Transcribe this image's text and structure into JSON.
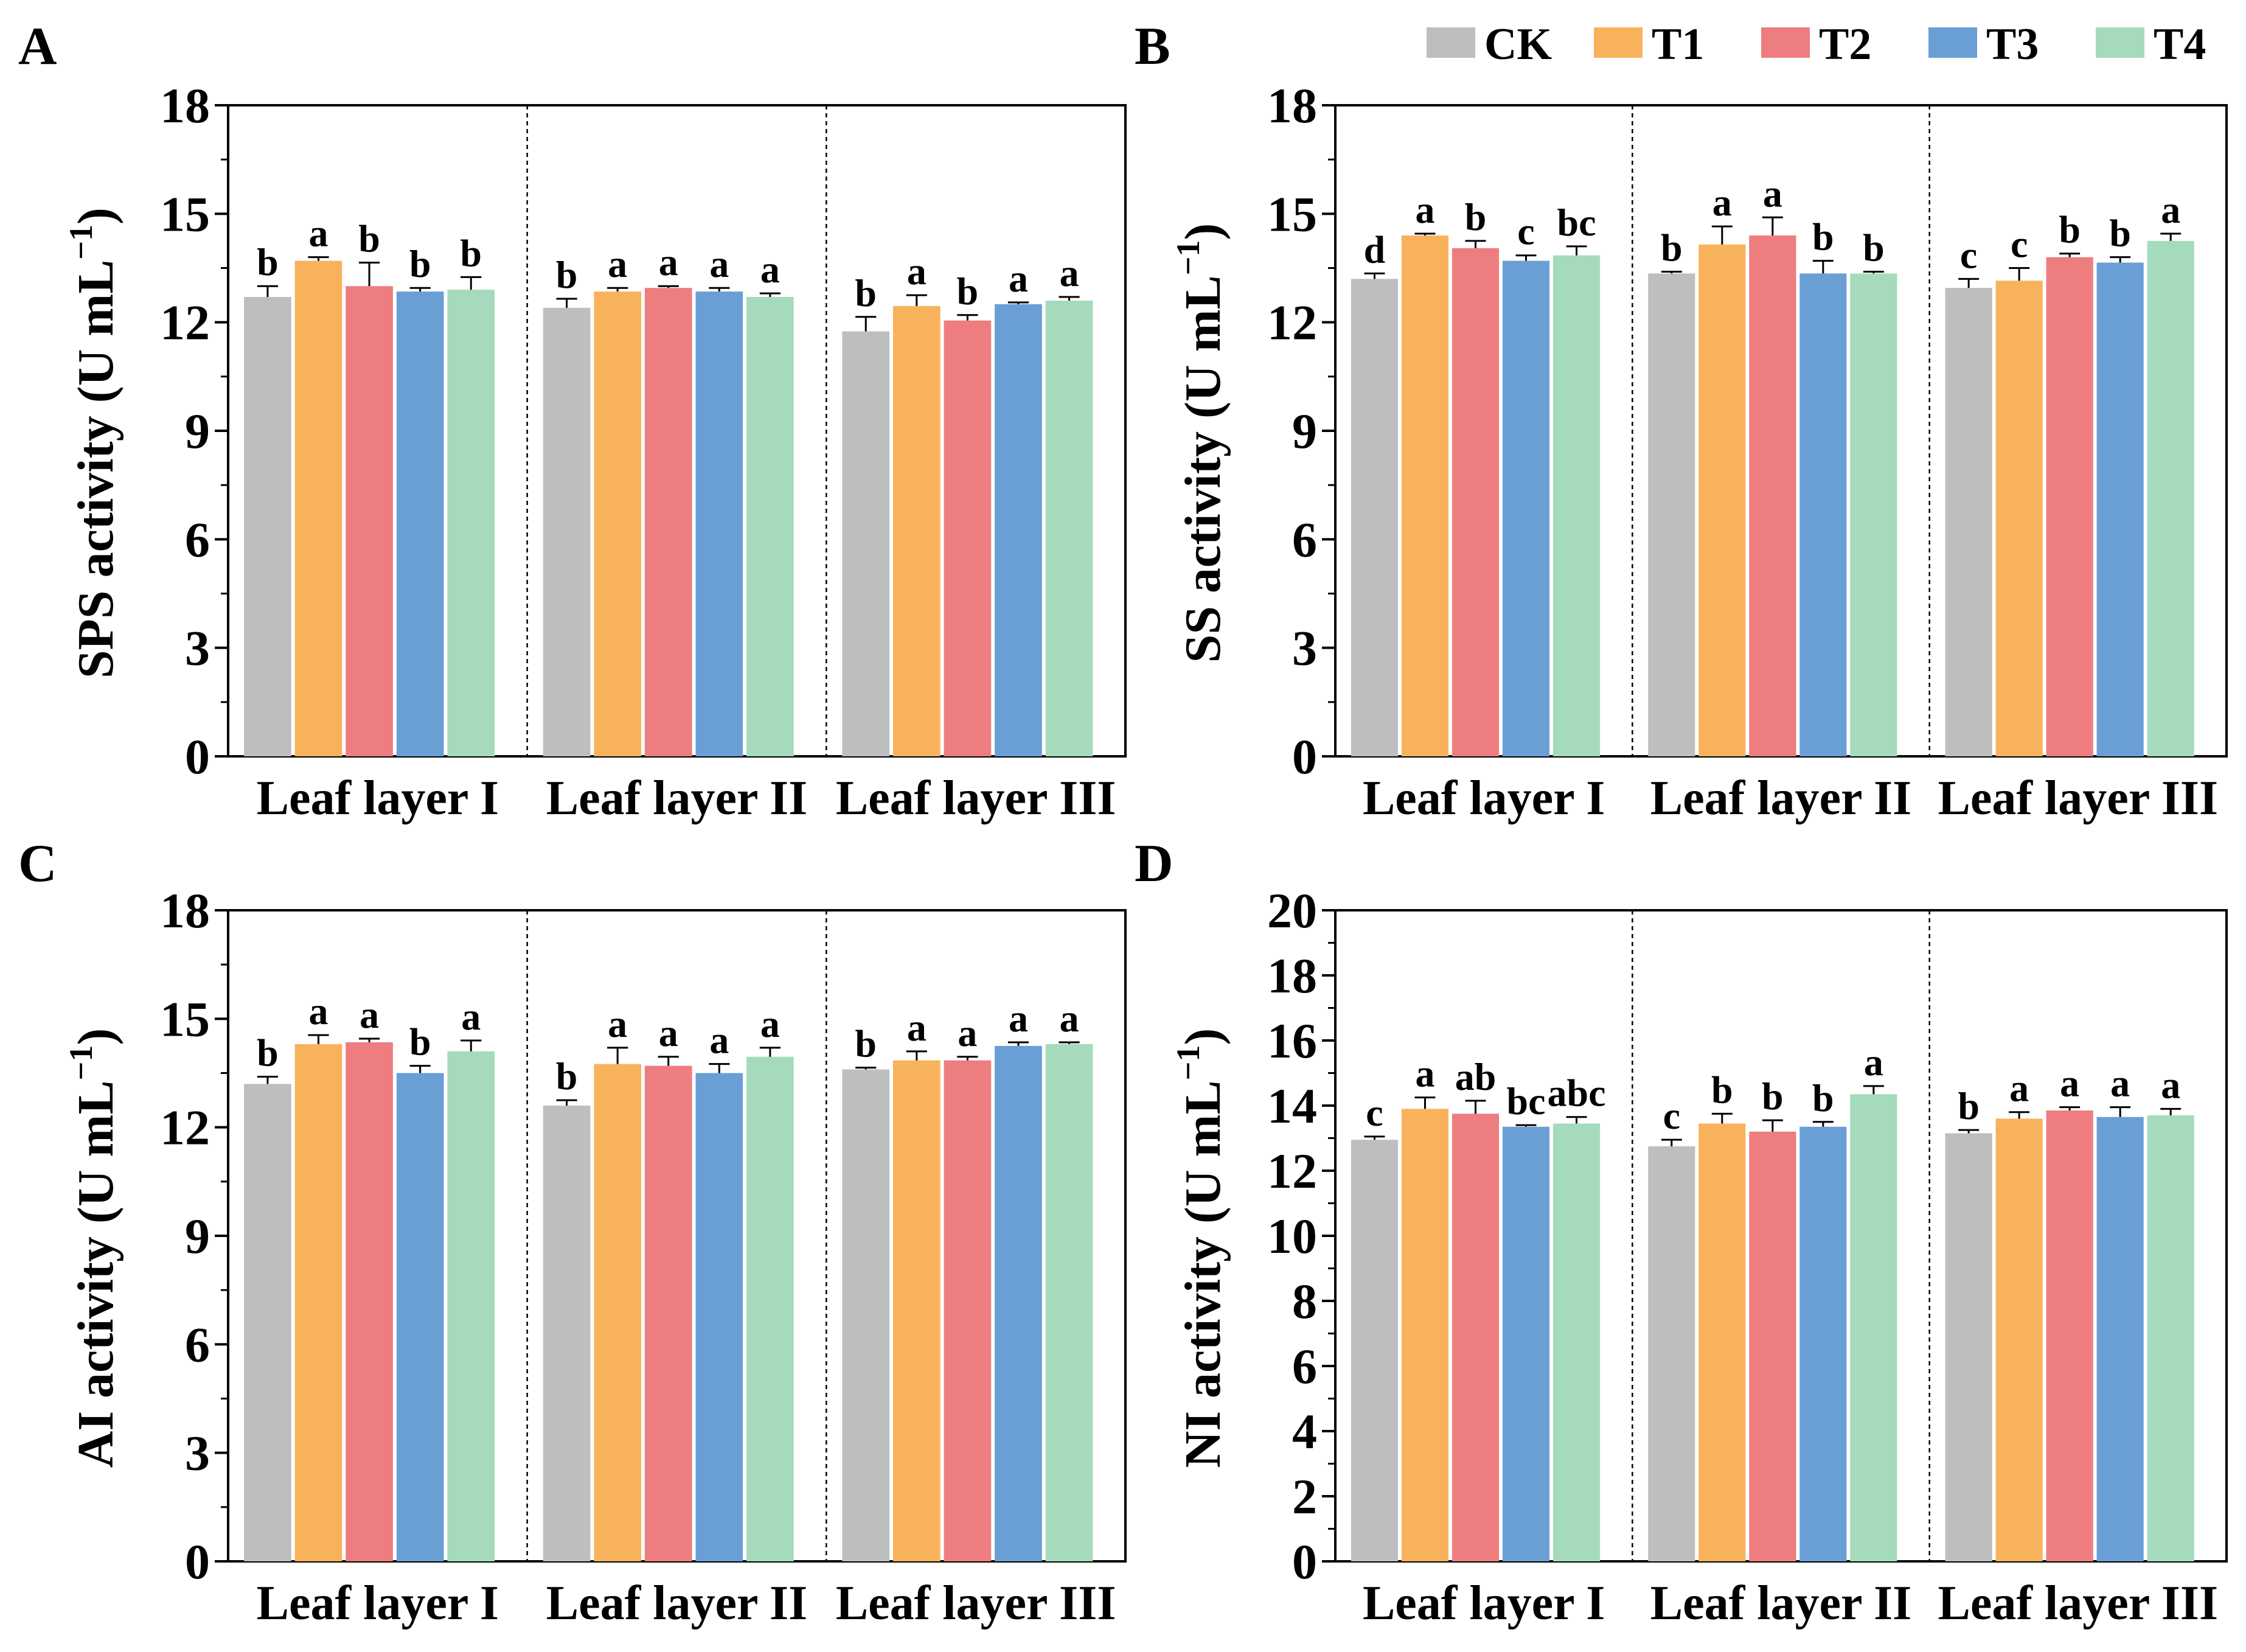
{
  "legend": {
    "items": [
      {
        "label": "CK",
        "color": "#bdbec0"
      },
      {
        "label": "T1",
        "color": "#f9b25c"
      },
      {
        "label": "T2",
        "color": "#ee7d7f"
      },
      {
        "label": "T3",
        "color": "#6a9fd5"
      },
      {
        "label": "T4",
        "color": "#a5dbbc"
      }
    ]
  },
  "chart_data": [
    {
      "panel": "A",
      "type": "bar",
      "ylabel": "SPS activity (U mL",
      "ylabel_sup": "−1",
      "ylabel_close": ")",
      "ylim": [
        0,
        18
      ],
      "yticks": [
        0,
        3,
        6,
        9,
        12,
        15,
        18
      ],
      "categories": [
        "Leaf layer I",
        "Leaf layer II",
        "Leaf layer III"
      ],
      "series": [
        {
          "name": "CK",
          "values": [
            12.7,
            12.4,
            11.75
          ],
          "errors": [
            0.3,
            0.25,
            0.4
          ],
          "letters": [
            "b",
            "b",
            "b"
          ]
        },
        {
          "name": "T1",
          "values": [
            13.7,
            12.85,
            12.45
          ],
          "errors": [
            0.1,
            0.1,
            0.3
          ],
          "letters": [
            "a",
            "a",
            "a"
          ]
        },
        {
          "name": "T2",
          "values": [
            13.0,
            12.95,
            12.05
          ],
          "errors": [
            0.65,
            0.05,
            0.15
          ],
          "letters": [
            "b",
            "a",
            "b"
          ]
        },
        {
          "name": "T3",
          "values": [
            12.85,
            12.85,
            12.5
          ],
          "errors": [
            0.1,
            0.1,
            0.05
          ],
          "letters": [
            "b",
            "a",
            "a"
          ]
        },
        {
          "name": "T4",
          "values": [
            12.9,
            12.7,
            12.6
          ],
          "errors": [
            0.35,
            0.1,
            0.1
          ],
          "letters": [
            "b",
            "a",
            "a"
          ]
        }
      ]
    },
    {
      "panel": "B",
      "type": "bar",
      "ylabel": "SS activity (U mL",
      "ylabel_sup": "−1",
      "ylabel_close": ")",
      "ylim": [
        0,
        18
      ],
      "yticks": [
        0,
        3,
        6,
        9,
        12,
        15,
        18
      ],
      "categories": [
        "Leaf layer I",
        "Leaf layer II",
        "Leaf layer III"
      ],
      "series": [
        {
          "name": "CK",
          "values": [
            13.2,
            13.35,
            12.95
          ],
          "errors": [
            0.15,
            0.05,
            0.25
          ],
          "letters": [
            "d",
            "b",
            "c"
          ]
        },
        {
          "name": "T1",
          "values": [
            14.4,
            14.15,
            13.15
          ],
          "errors": [
            0.05,
            0.5,
            0.35
          ],
          "letters": [
            "a",
            "a",
            "c"
          ]
        },
        {
          "name": "T2",
          "values": [
            14.05,
            14.4,
            13.8
          ],
          "errors": [
            0.2,
            0.5,
            0.1
          ],
          "letters": [
            "b",
            "a",
            "b"
          ]
        },
        {
          "name": "T3",
          "values": [
            13.7,
            13.35,
            13.65
          ],
          "errors": [
            0.15,
            0.35,
            0.15
          ],
          "letters": [
            "c",
            "b",
            "b"
          ]
        },
        {
          "name": "T4",
          "values": [
            13.85,
            13.35,
            14.25
          ],
          "errors": [
            0.25,
            0.05,
            0.2
          ],
          "letters": [
            "bc",
            "b",
            "a"
          ]
        }
      ]
    },
    {
      "panel": "C",
      "type": "bar",
      "ylabel": "AI activity (U mL",
      "ylabel_sup": "−1",
      "ylabel_close": ")",
      "ylim": [
        0,
        18
      ],
      "yticks": [
        0,
        3,
        6,
        9,
        12,
        15,
        18
      ],
      "categories": [
        "Leaf layer I",
        "Leaf layer II",
        "Leaf layer III"
      ],
      "series": [
        {
          "name": "CK",
          "values": [
            13.2,
            12.6,
            13.6
          ],
          "errors": [
            0.2,
            0.15,
            0.05
          ],
          "letters": [
            "b",
            "b",
            "b"
          ]
        },
        {
          "name": "T1",
          "values": [
            14.3,
            13.75,
            13.85
          ],
          "errors": [
            0.25,
            0.45,
            0.25
          ],
          "letters": [
            "a",
            "a",
            "a"
          ]
        },
        {
          "name": "T2",
          "values": [
            14.35,
            13.7,
            13.85
          ],
          "errors": [
            0.1,
            0.25,
            0.1
          ],
          "letters": [
            "a",
            "a",
            "a"
          ]
        },
        {
          "name": "T3",
          "values": [
            13.5,
            13.5,
            14.25
          ],
          "errors": [
            0.2,
            0.25,
            0.1
          ],
          "letters": [
            "b",
            "a",
            "a"
          ]
        },
        {
          "name": "T4",
          "values": [
            14.1,
            13.95,
            14.3
          ],
          "errors": [
            0.3,
            0.25,
            0.05
          ],
          "letters": [
            "a",
            "a",
            "a"
          ]
        }
      ]
    },
    {
      "panel": "D",
      "type": "bar",
      "ylabel": "NI activity (U mL",
      "ylabel_sup": "−1",
      "ylabel_close": ")",
      "ylim": [
        0,
        20
      ],
      "yticks": [
        0,
        2,
        4,
        6,
        8,
        10,
        12,
        14,
        16,
        18,
        20
      ],
      "categories": [
        "Leaf layer I",
        "Leaf layer II",
        "Leaf layer III"
      ],
      "series": [
        {
          "name": "CK",
          "values": [
            12.95,
            12.75,
            13.15
          ],
          "errors": [
            0.1,
            0.2,
            0.1
          ],
          "letters": [
            "c",
            "c",
            "b"
          ]
        },
        {
          "name": "T1",
          "values": [
            13.9,
            13.45,
            13.6
          ],
          "errors": [
            0.35,
            0.3,
            0.2
          ],
          "letters": [
            "a",
            "b",
            "a"
          ]
        },
        {
          "name": "T2",
          "values": [
            13.75,
            13.2,
            13.85
          ],
          "errors": [
            0.4,
            0.35,
            0.1
          ],
          "letters": [
            "ab",
            "b",
            "a"
          ]
        },
        {
          "name": "T3",
          "values": [
            13.35,
            13.35,
            13.65
          ],
          "errors": [
            0.05,
            0.15,
            0.3
          ],
          "letters": [
            "bc",
            "b",
            "a"
          ]
        },
        {
          "name": "T4",
          "values": [
            13.45,
            14.35,
            13.7
          ],
          "errors": [
            0.2,
            0.25,
            0.2
          ],
          "letters": [
            "abc",
            "a",
            "a"
          ]
        }
      ]
    }
  ]
}
